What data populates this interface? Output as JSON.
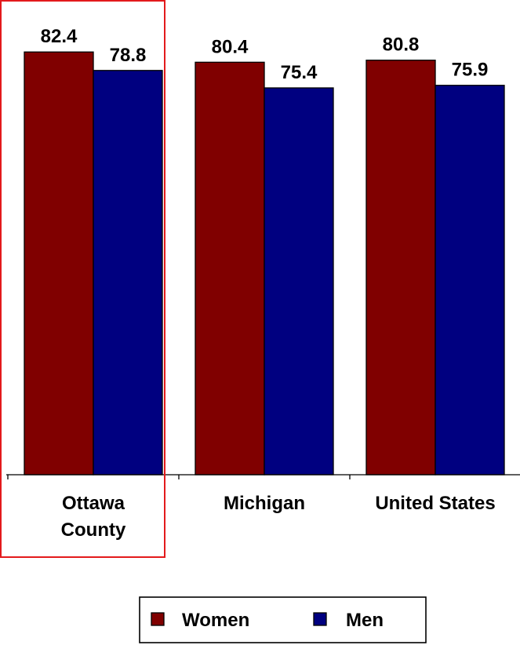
{
  "chart_data": {
    "type": "bar",
    "categories": [
      "Ottawa County",
      "Michigan",
      "United States"
    ],
    "category_lines": [
      [
        "Ottawa",
        "County"
      ],
      [
        "Michigan"
      ],
      [
        "United States"
      ]
    ],
    "series": [
      {
        "name": "Women",
        "values": [
          82.4,
          80.4,
          80.8
        ],
        "value_labels": [
          "82.4",
          "80.4",
          "80.8"
        ],
        "color": "#800000"
      },
      {
        "name": "Men",
        "values": [
          78.8,
          75.4,
          75.9
        ],
        "value_labels": [
          "78.8",
          "75.4",
          "75.9"
        ],
        "color": "#000080"
      }
    ],
    "highlighted_category": "Ottawa County",
    "highlight_color": "#e31a1c",
    "ylim": [
      0,
      90
    ],
    "grid": false,
    "legend": "bottom"
  }
}
